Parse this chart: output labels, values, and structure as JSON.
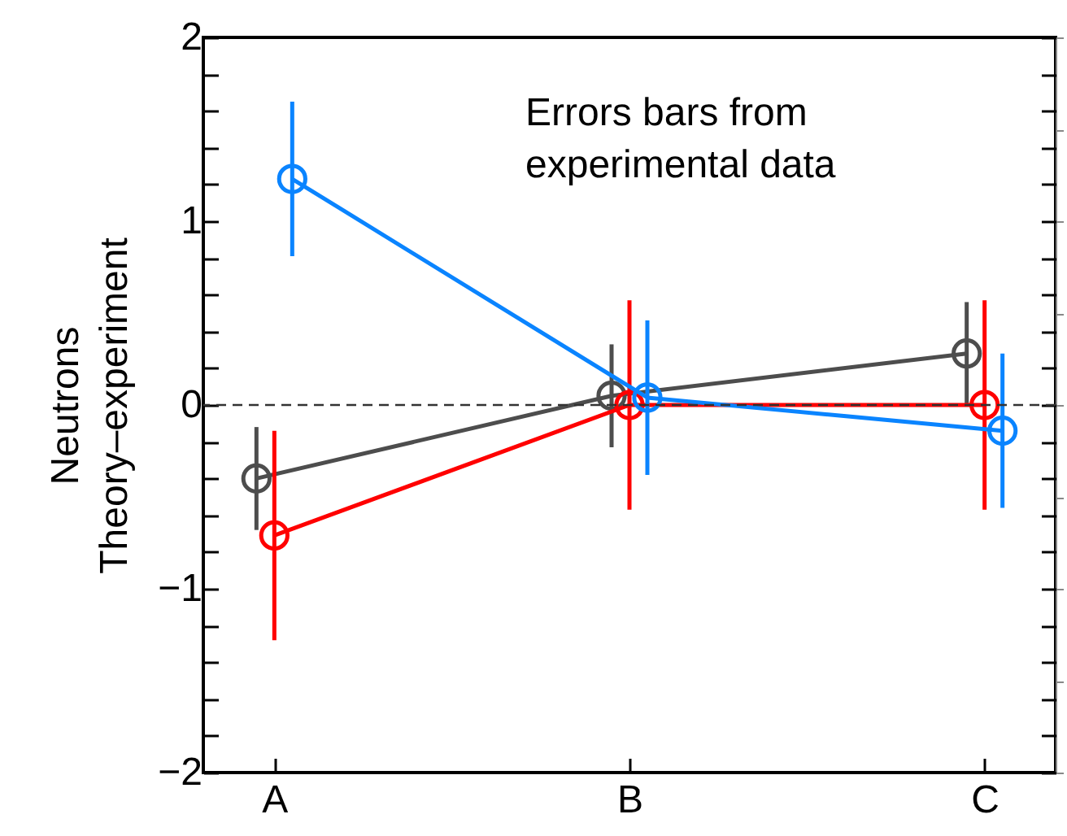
{
  "chart_data": {
    "type": "line",
    "ylabel": "Neutrons\nTheory–experiment",
    "categories": [
      "A",
      "B",
      "C"
    ],
    "series": [
      {
        "color": "#4d4d4d",
        "values": [
          -0.4,
          0.05,
          0.28
        ],
        "errors": [
          0.28,
          0.28,
          0.28
        ]
      },
      {
        "color": "#ff0000",
        "values": [
          -0.71,
          0.0,
          0.0
        ],
        "errors": [
          0.57,
          0.57,
          0.57
        ]
      },
      {
        "color": "#0a84ff",
        "values": [
          1.23,
          0.04,
          -0.14
        ],
        "errors": [
          0.42,
          0.42,
          0.42
        ]
      }
    ],
    "ylim": [
      -2,
      2
    ],
    "yticks": [
      {
        "value": -2,
        "label": "−2"
      },
      {
        "value": -1.8,
        "label": null
      },
      {
        "value": -1.6,
        "label": null
      },
      {
        "value": -1.4,
        "label": null
      },
      {
        "value": -1.2,
        "label": null
      },
      {
        "value": -1,
        "label": "−1"
      },
      {
        "value": -0.8,
        "label": null
      },
      {
        "value": -0.6,
        "label": null
      },
      {
        "value": -0.4,
        "label": null
      },
      {
        "value": -0.2,
        "label": null
      },
      0,
      {
        "value": 0.2,
        "label": null
      },
      {
        "value": 0.4,
        "label": null
      },
      {
        "value": 0.6,
        "label": null
      },
      {
        "value": 0.8,
        "label": null
      },
      1,
      {
        "value": 1.2,
        "label": null
      },
      {
        "value": 1.4,
        "label": null
      },
      {
        "value": 1.6,
        "label": null
      },
      {
        "value": 1.8,
        "label": null
      },
      2
    ],
    "ref_lines": [
      {
        "axis": "y",
        "value": 0,
        "color": "#333333",
        "line_style": "dashed"
      }
    ],
    "annotations": [
      "Errors bars from\nexperimental data"
    ],
    "marker": "circle",
    "line_style": "solid",
    "grid": false,
    "legend": false
  }
}
